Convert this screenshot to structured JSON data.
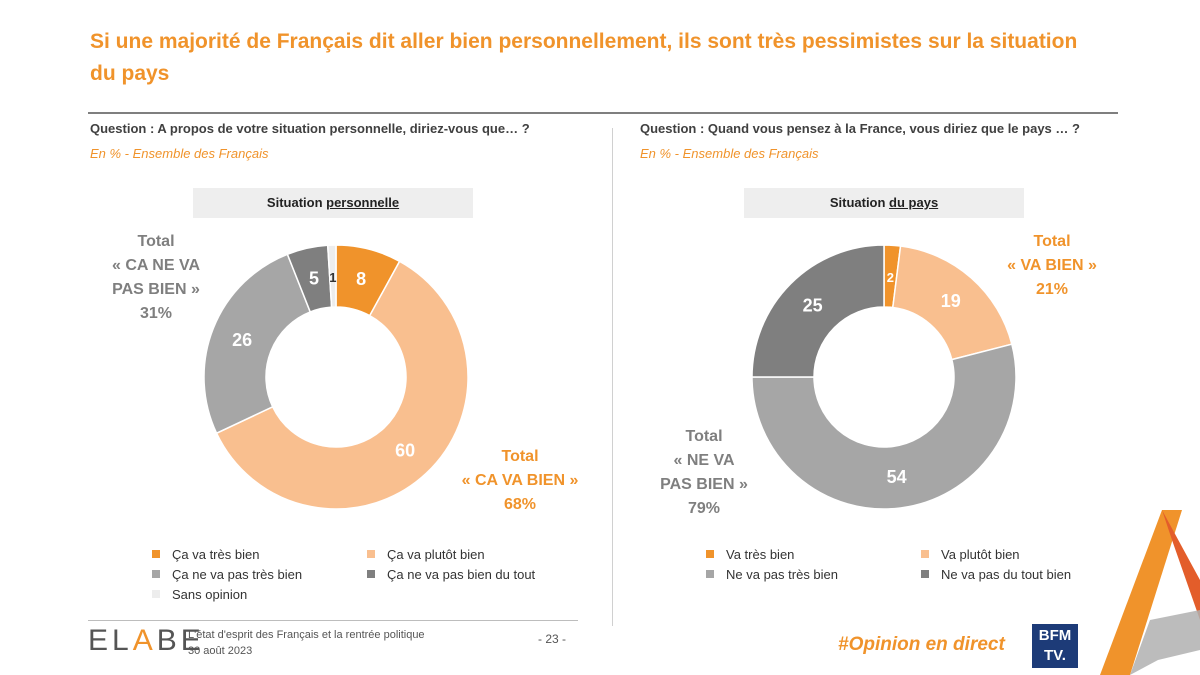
{
  "title": "Si une majorité de Français dit aller bien personnellement, ils sont très pessimistes sur la situation du pays",
  "left": {
    "question": "Question : A propos de votre situation personnelle, diriez-vous que… ?",
    "subtitle": "En % - Ensemble des Français",
    "box_prefix": "Situation ",
    "box_underlined": "personnelle",
    "total_bad": {
      "line1": "Total",
      "line2": "« CA NE VA",
      "line3": "PAS BIEN »",
      "value": "31%"
    },
    "total_good": {
      "line1": "Total",
      "line2": "« CA VA BIEN »",
      "value": "68%"
    },
    "legend": [
      "Ça va très bien",
      "Ça va plutôt bien",
      "Ça ne va pas très bien",
      "Ça ne va pas bien du tout",
      "Sans opinion"
    ]
  },
  "right": {
    "question": "Question : Quand vous pensez à la France, vous diriez que le pays … ?",
    "subtitle": "En % - Ensemble des Français",
    "box_prefix": "Situation ",
    "box_underlined": "du pays",
    "total_good": {
      "line1": "Total",
      "line2": "« VA BIEN »",
      "value": "21%"
    },
    "total_bad": {
      "line1": "Total",
      "line2": "« NE VA",
      "line3": "PAS BIEN »",
      "value": "79%"
    },
    "legend": [
      "Va très bien",
      "Va plutôt bien",
      "Ne va pas très bien",
      "Ne va pas du tout bien"
    ]
  },
  "colors": {
    "very_good": "#f0932b",
    "rather_good": "#f9bf8f",
    "not_very_good": "#a6a6a6",
    "not_good_at_all": "#7f7f7f",
    "no_opinion": "#ededed"
  },
  "chart_data": [
    {
      "type": "pie",
      "title": "Situation personnelle",
      "categories": [
        "Ça va très bien",
        "Ça va plutôt bien",
        "Ça ne va pas très bien",
        "Ça ne va pas bien du tout",
        "Sans opinion"
      ],
      "values": [
        8,
        60,
        26,
        5,
        1
      ],
      "labels": [
        "8",
        "60",
        "26",
        "5",
        "1"
      ]
    },
    {
      "type": "pie",
      "title": "Situation du pays",
      "categories": [
        "Va très bien",
        "Va plutôt bien",
        "Ne va pas très bien",
        "Ne va pas du tout bien"
      ],
      "values": [
        2,
        19,
        54,
        25
      ],
      "labels": [
        "2",
        "19",
        "54",
        "25"
      ]
    }
  ],
  "footer": {
    "brand_part1": "EL",
    "brand_part2": "A",
    "brand_part3": "BE",
    "line1": "L'état d'esprit des Français et la rentrée politique",
    "line2": "30 août 2023",
    "page": "- 23 -",
    "hashtag": "#Opinion en direct",
    "bfm_line1": "BFM",
    "bfm_line2": "TV."
  }
}
